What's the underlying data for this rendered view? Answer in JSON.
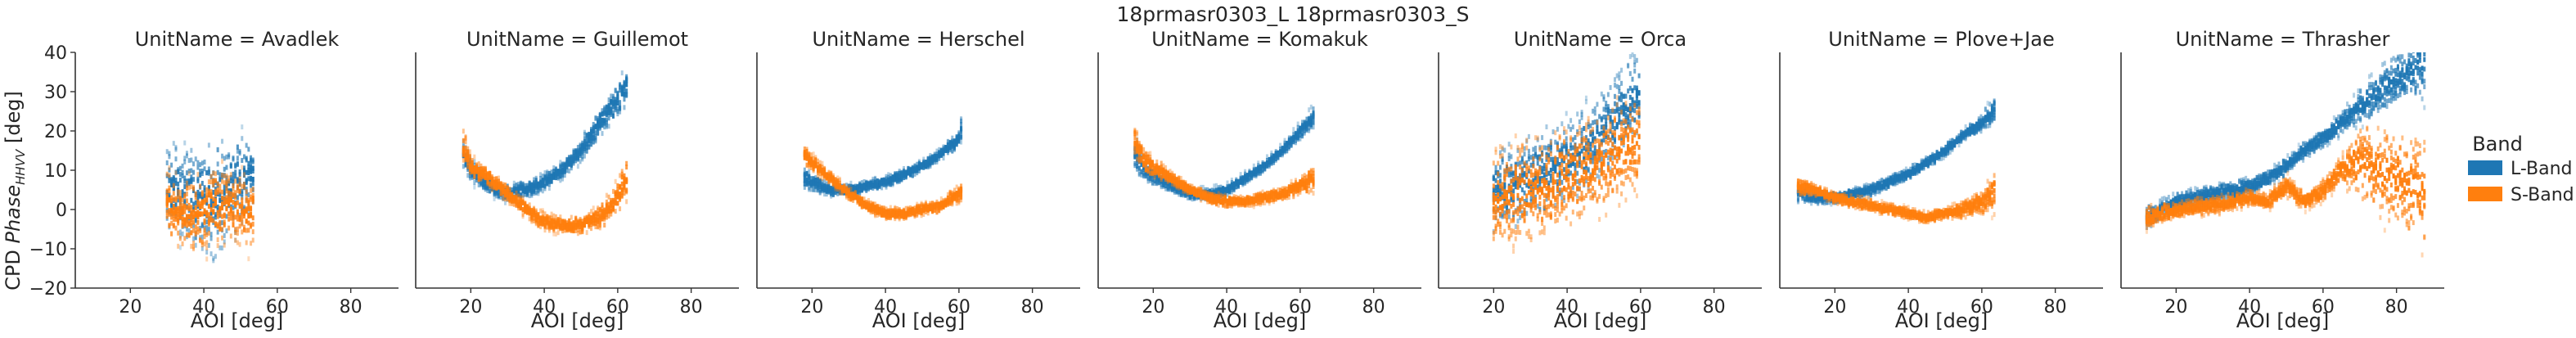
{
  "figure": {
    "title": "18prmasr0303_L 18prmasr0303_S"
  },
  "legend": {
    "title": "Band",
    "placement": "right",
    "entries": [
      {
        "label": "L-Band",
        "color": "#1f77b4"
      },
      {
        "label": "S-Band",
        "color": "#ff7f0e"
      }
    ]
  },
  "chart_data": {
    "type": "heatmap",
    "title": "18prmasr0303_L 18prmasr0303_S",
    "xlabel": "AOI [deg]",
    "ylabel_prefix": "CPD ",
    "ylabel_italic": "Phase",
    "ylabel_sub": "HHVV",
    "ylabel_suffix": " [deg]",
    "xlim": [
      5,
      93
    ],
    "ylim": [
      -20,
      40
    ],
    "x_ticks": [
      "20",
      "40",
      "60",
      "80"
    ],
    "y_ticks": [
      "−20",
      "−10",
      "0",
      "10",
      "20",
      "30",
      "40"
    ],
    "x_tick_values": [
      20,
      40,
      60,
      80
    ],
    "y_tick_values": [
      -20,
      -10,
      0,
      10,
      20,
      30,
      40
    ],
    "grid": false,
    "series_names": [
      "L-Band",
      "S-Band"
    ],
    "colors": {
      "L-Band": "#1f77b4",
      "S-Band": "#ff7f0e"
    },
    "facets": [
      {
        "title": "UnitName = Avadlek",
        "series": [
          {
            "name": "L-Band",
            "x": [
              30,
              32,
              34,
              41,
              43,
              51,
              52,
              54
            ],
            "y": [
              5,
              6,
              4,
              3,
              2,
              8,
              10,
              7
            ],
            "spread": [
              15,
              15,
              15,
              20,
              20,
              15,
              15,
              15
            ]
          },
          {
            "name": "S-Band",
            "x": [
              30,
              32,
              34,
              41,
              43,
              51,
              52,
              54
            ],
            "y": [
              2,
              0,
              -2,
              0,
              1,
              0,
              -2,
              0
            ],
            "spread": [
              12,
              12,
              12,
              15,
              15,
              12,
              12,
              12
            ]
          }
        ]
      },
      {
        "title": "UnitName = Guillemot",
        "series": [
          {
            "name": "L-Band",
            "x": [
              18,
              20,
              25,
              30,
              35,
              40,
              45,
              50,
              55,
              60,
              63
            ],
            "y": [
              14,
              10,
              6,
              4,
              5,
              7,
              10,
              15,
              22,
              28,
              32
            ],
            "spread": [
              5,
              4,
              3,
              3,
              3,
              3,
              3,
              4,
              5,
              6,
              8
            ]
          },
          {
            "name": "S-Band",
            "x": [
              18,
              20,
              25,
              30,
              35,
              40,
              45,
              50,
              55,
              60,
              63
            ],
            "y": [
              16,
              11,
              8,
              4,
              0,
              -3,
              -4,
              -4,
              -2,
              3,
              10
            ],
            "spread": [
              6,
              4,
              3,
              3,
              3,
              3,
              3,
              3,
              4,
              6,
              10
            ]
          }
        ]
      },
      {
        "title": "UnitName = Herschel",
        "series": [
          {
            "name": "L-Band",
            "x": [
              18,
              20,
              25,
              30,
              35,
              40,
              45,
              50,
              55,
              60,
              61
            ],
            "y": [
              8,
              7,
              5,
              5,
              6,
              7,
              9,
              11,
              14,
              18,
              22
            ],
            "spread": [
              4,
              3,
              2,
              2,
              2,
              2,
              2,
              2,
              2,
              3,
              5
            ]
          },
          {
            "name": "S-Band",
            "x": [
              18,
              20,
              25,
              30,
              35,
              40,
              45,
              50,
              55,
              60,
              61
            ],
            "y": [
              14,
              12,
              8,
              4,
              1,
              -1,
              -1,
              0,
              1,
              4,
              5
            ],
            "spread": [
              4,
              3,
              2,
              2,
              2,
              2,
              2,
              2,
              2,
              3,
              4
            ]
          }
        ]
      },
      {
        "title": "UnitName = Komakuk",
        "series": [
          {
            "name": "L-Band",
            "x": [
              15,
              18,
              25,
              30,
              35,
              40,
              45,
              50,
              55,
              60,
              64
            ],
            "y": [
              14,
              10,
              6,
              4,
              4,
              5,
              8,
              11,
              15,
              20,
              24
            ],
            "spread": [
              6,
              4,
              2,
              2,
              2,
              2,
              2,
              2,
              2,
              3,
              4
            ]
          },
          {
            "name": "S-Band",
            "x": [
              15,
              18,
              25,
              30,
              35,
              40,
              45,
              50,
              55,
              60,
              64
            ],
            "y": [
              17,
              12,
              8,
              5,
              3,
              2,
              2,
              3,
              4,
              6,
              8
            ],
            "spread": [
              5,
              4,
              2,
              2,
              2,
              2,
              2,
              2,
              2,
              3,
              5
            ]
          }
        ]
      },
      {
        "title": "UnitName = Orca",
        "series": [
          {
            "name": "L-Band",
            "x": [
              20,
              25,
              30,
              35,
              40,
              45,
              50,
              55,
              60
            ],
            "y": [
              5,
              6,
              8,
              10,
              12,
              15,
              20,
              25,
              30
            ],
            "spread": [
              15,
              15,
              15,
              15,
              15,
              15,
              15,
              15,
              15
            ]
          },
          {
            "name": "S-Band",
            "x": [
              20,
              25,
              30,
              35,
              40,
              45,
              50,
              55,
              60
            ],
            "y": [
              2,
              4,
              5,
              6,
              8,
              10,
              12,
              15,
              18
            ],
            "spread": [
              18,
              18,
              18,
              18,
              18,
              18,
              18,
              18,
              18
            ]
          }
        ]
      },
      {
        "title": "UnitName = Plove+Jae",
        "series": [
          {
            "name": "L-Band",
            "x": [
              10,
              15,
              20,
              25,
              30,
              35,
              40,
              45,
              50,
              55,
              60,
              64
            ],
            "y": [
              4,
              3,
              3,
              4,
              5,
              7,
              9,
              12,
              15,
              19,
              22,
              26
            ],
            "spread": [
              3,
              2,
              2,
              2,
              2,
              2,
              2,
              2,
              2,
              2,
              3,
              5
            ]
          },
          {
            "name": "S-Band",
            "x": [
              10,
              15,
              20,
              25,
              30,
              35,
              40,
              45,
              50,
              55,
              60,
              64
            ],
            "y": [
              6,
              5,
              3,
              2,
              1,
              0,
              -1,
              -2,
              -1,
              0,
              2,
              5
            ],
            "spread": [
              3,
              2,
              2,
              2,
              2,
              2,
              2,
              2,
              2,
              3,
              4,
              8
            ]
          }
        ]
      },
      {
        "title": "UnitName = Thrasher",
        "series": [
          {
            "name": "L-Band",
            "x": [
              12,
              20,
              30,
              40,
              45,
              50,
              55,
              60,
              65,
              70,
              75,
              80,
              85,
              88
            ],
            "y": [
              -2,
              2,
              4,
              6,
              8,
              11,
              15,
              18,
              22,
              26,
              30,
              33,
              36,
              38
            ],
            "spread": [
              4,
              3,
              3,
              3,
              3,
              3,
              3,
              3,
              4,
              6,
              8,
              10,
              12,
              14
            ]
          },
          {
            "name": "S-Band",
            "x": [
              12,
              20,
              30,
              40,
              45,
              50,
              55,
              60,
              65,
              70,
              75,
              80,
              85,
              88
            ],
            "y": [
              -2,
              0,
              1,
              3,
              2,
              6,
              2,
              5,
              10,
              12,
              10,
              8,
              6,
              5
            ],
            "spread": [
              4,
              3,
              3,
              3,
              3,
              4,
              3,
              4,
              5,
              14,
              16,
              18,
              20,
              20
            ]
          }
        ]
      }
    ]
  }
}
